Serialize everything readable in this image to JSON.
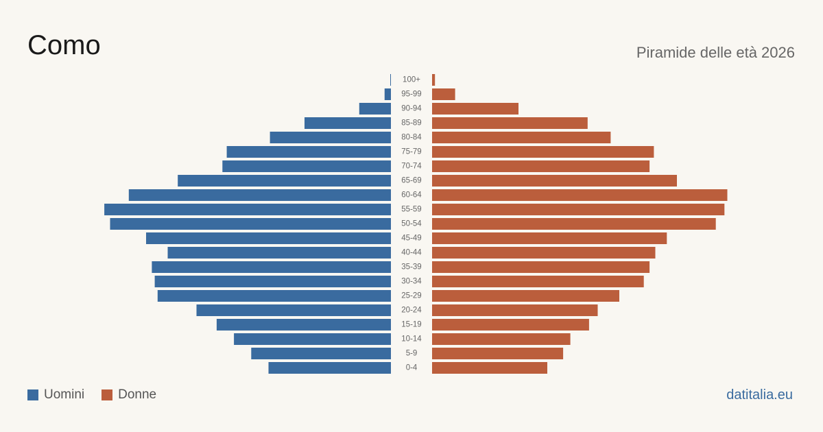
{
  "header": {
    "title": "Como",
    "subtitle": "Piramide delle età 2026"
  },
  "legend": {
    "men_label": "Uomini",
    "women_label": "Donne"
  },
  "source": {
    "label": "datitalia.eu"
  },
  "colors": {
    "men": "#3a6b9f",
    "women": "#bb5e3c",
    "background": "#f9f7f2"
  },
  "chart_data": {
    "type": "bar",
    "orientation": "horizontal-diverging",
    "categories": [
      "100+",
      "95-99",
      "90-94",
      "85-89",
      "80-84",
      "75-79",
      "70-74",
      "65-69",
      "60-64",
      "55-59",
      "50-54",
      "45-49",
      "40-44",
      "35-39",
      "30-34",
      "25-29",
      "20-24",
      "15-19",
      "10-14",
      "5-9",
      "0-4"
    ],
    "series": [
      {
        "name": "Uomini",
        "values": [
          0.1,
          2.2,
          11,
          30,
          42,
          57,
          58.5,
          74,
          91,
          99.5,
          97.5,
          85,
          77.5,
          83,
          82,
          81,
          67.5,
          60.5,
          54.5,
          48.5,
          42.5
        ]
      },
      {
        "name": "Donne",
        "values": [
          1,
          8,
          30,
          54,
          62,
          77,
          75.5,
          85,
          102.5,
          101.5,
          98.5,
          81.5,
          77.5,
          75.5,
          73.5,
          65,
          57.5,
          54.5,
          48,
          45.5,
          40
        ]
      }
    ],
    "xlim": [
      0,
      102.5
    ],
    "grid": false,
    "legend_position": "bottom-left"
  }
}
